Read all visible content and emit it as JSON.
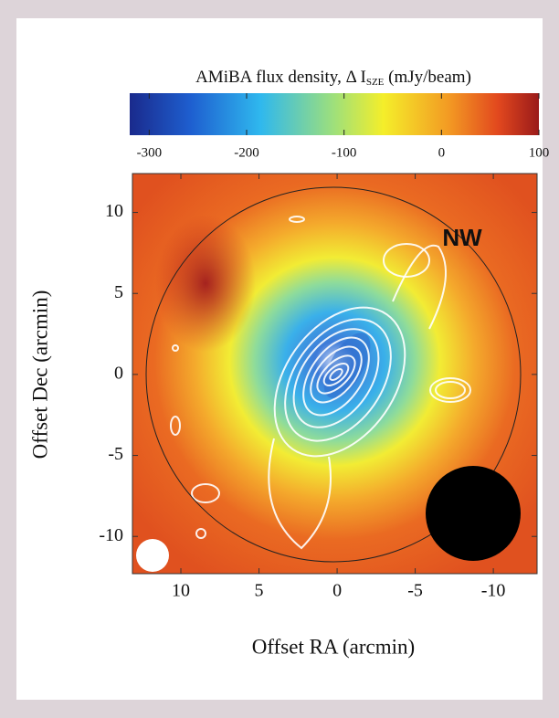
{
  "chart_data": {
    "type": "map",
    "colorbar_label": {
      "text": "AMiBA flux density, Δ I",
      "subscript": "SZE",
      "suffix": " (mJy/beam)"
    },
    "clim": [
      -320,
      100
    ],
    "cticks": [
      -300,
      -200,
      -100,
      0,
      100
    ],
    "xlabel": "Offset RA (arcmin)",
    "ylabel": "Offset Dec (arcmin)",
    "xlim": [
      13.1,
      -12.8
    ],
    "xticks": [
      10,
      5,
      0,
      -5,
      -10
    ],
    "ylim": [
      -12.3,
      12.4
    ],
    "yticks": [
      10,
      5,
      0,
      -5,
      -10
    ],
    "annotation": "NW"
  }
}
